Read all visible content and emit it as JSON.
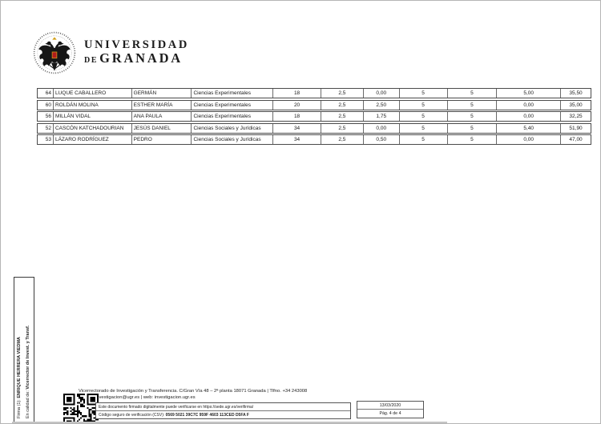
{
  "logo": {
    "line1": "UNIVERSIDAD",
    "line2_small": "DE",
    "line2": "GRANADA"
  },
  "table": {
    "rows": [
      {
        "num": "64",
        "surname": "LUQUE CABALLERO",
        "name": "GERMÁN",
        "branch": "Ciencias Experimentales",
        "c5": "18",
        "c6": "2,5",
        "c7": "0,00",
        "c8": "5",
        "c9": "5",
        "c10": "5,00",
        "total": "35,50"
      },
      {
        "num": "60",
        "surname": "ROLDÁN MOLINA",
        "name": "ESTHER MARÍA",
        "branch": "Ciencias Experimentales",
        "c5": "20",
        "c6": "2,5",
        "c7": "2,50",
        "c8": "5",
        "c9": "5",
        "c10": "0,00",
        "total": "35,00"
      },
      {
        "num": "56",
        "surname": "MILLÁN VIDAL",
        "name": "ANA PAULA",
        "branch": "Ciencias Experimentales",
        "c5": "18",
        "c6": "2,5",
        "c7": "1,75",
        "c8": "5",
        "c9": "5",
        "c10": "0,00",
        "total": "32,25"
      },
      {
        "num": "52",
        "surname": "CASCÓN KATCHADOURIAN",
        "name": "JESÚS DANIEL",
        "branch": "Ciencias Sociales y Jurídicas",
        "c5": "34",
        "c6": "2,5",
        "c7": "0,00",
        "c8": "5",
        "c9": "5",
        "c10": "5,40",
        "total": "51,90"
      },
      {
        "num": "53",
        "surname": "LÁZARO RODRÍGUEZ",
        "name": "PEDRO",
        "branch": "Ciencias Sociales y Jurídicas",
        "c5": "34",
        "c6": "2,5",
        "c7": "0,50",
        "c8": "5",
        "c9": "5",
        "c10": "0,00",
        "total": "47,00"
      }
    ]
  },
  "signature": {
    "line1_prefix": "Firma (1): ",
    "line1_name": "ENRIQUE HERRERA VIEDMA",
    "line2_prefix": "En calidad de: ",
    "line2_role": "Vicerrector de Invest. y Transf."
  },
  "footer": {
    "address": "Vicerrectorado de Investigación y Transferencia. C/Gran Vía 48 – 2ª planta 18071 Granada | Tlfno. +34 243008",
    "contact": "Correo: investigacion@ugr.es | web: investigacion.ugr.es",
    "verify_line1": "Este documento firmado digitalmente puede verificarse en https://sede.ugr.es/verifirma/",
    "verify_label": "Código seguro de verificación (CSV): ",
    "verify_code": "0569 5021 39C7C 959F 4603 113CED D5FA F",
    "date": "13/03/2020",
    "page": "Pág. 4 de 4"
  }
}
